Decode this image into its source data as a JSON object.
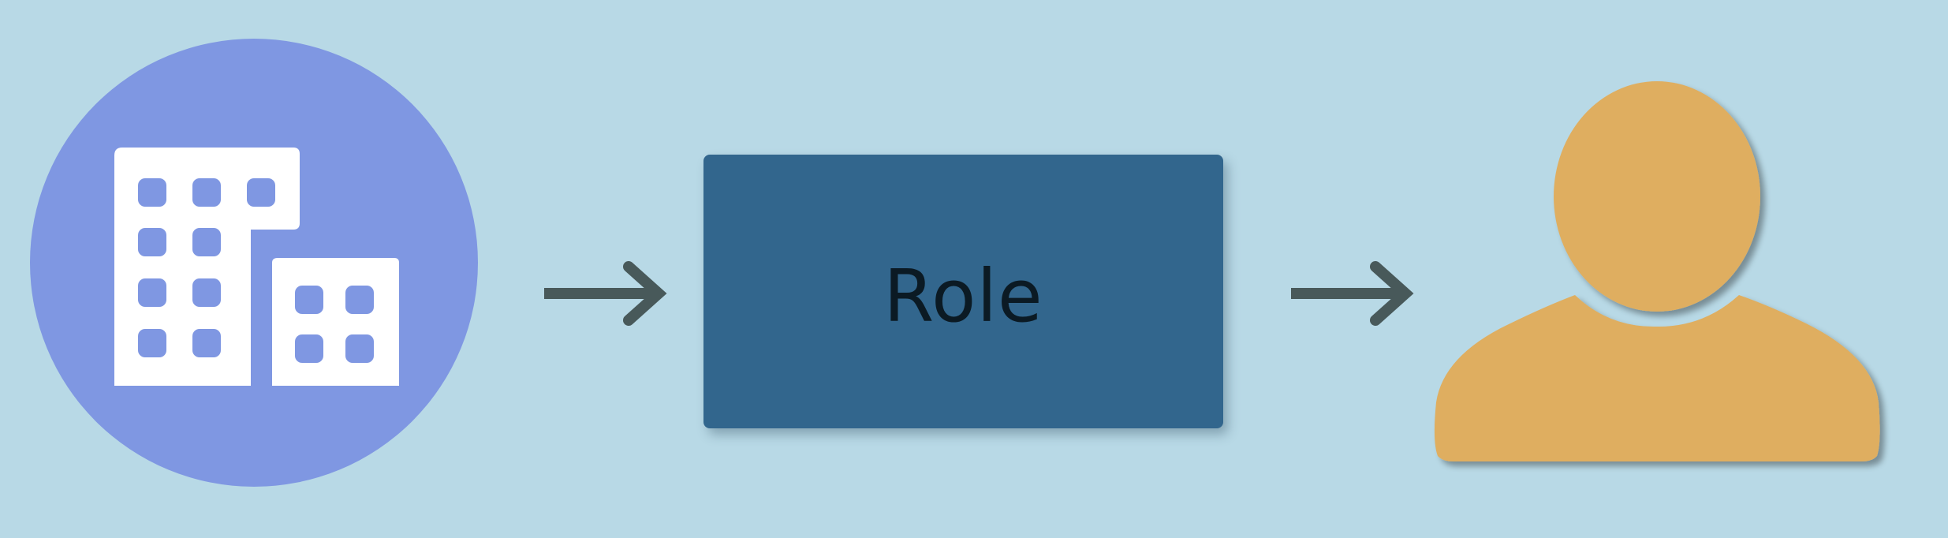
{
  "diagram": {
    "background_color": "#b8d9e6",
    "nodes": [
      {
        "id": "organization",
        "icon": "building-icon",
        "shape": "circle",
        "fill": "#7f97e2",
        "icon_color": "#ffffff"
      },
      {
        "id": "role",
        "shape": "rectangle",
        "label": "Role",
        "fill": "#32668d"
      },
      {
        "id": "user",
        "icon": "user-icon",
        "fill": "#dfae61"
      }
    ],
    "edges": [
      {
        "from": "organization",
        "to": "role",
        "color": "#48595a"
      },
      {
        "from": "role",
        "to": "user",
        "color": "#48595a"
      }
    ]
  }
}
